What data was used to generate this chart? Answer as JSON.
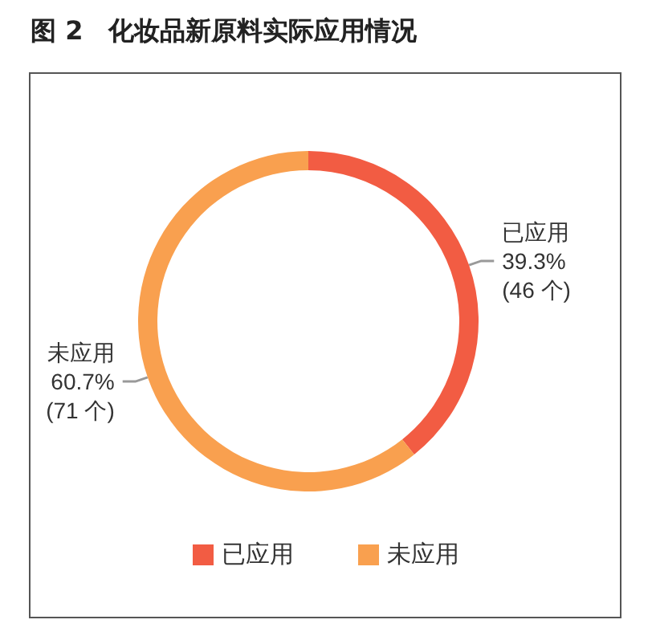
{
  "chart_data": {
    "type": "donut",
    "title": "图 2　化妆品新原料实际应用情况",
    "categories": [
      "已应用",
      "未应用"
    ],
    "values": [
      46,
      71
    ],
    "colors": [
      "#f25c43",
      "#f9a04f"
    ],
    "value_labels": [
      "39.3%\n(46 个)",
      "60.7%\n(71 个)"
    ],
    "legend": "bottom"
  }
}
